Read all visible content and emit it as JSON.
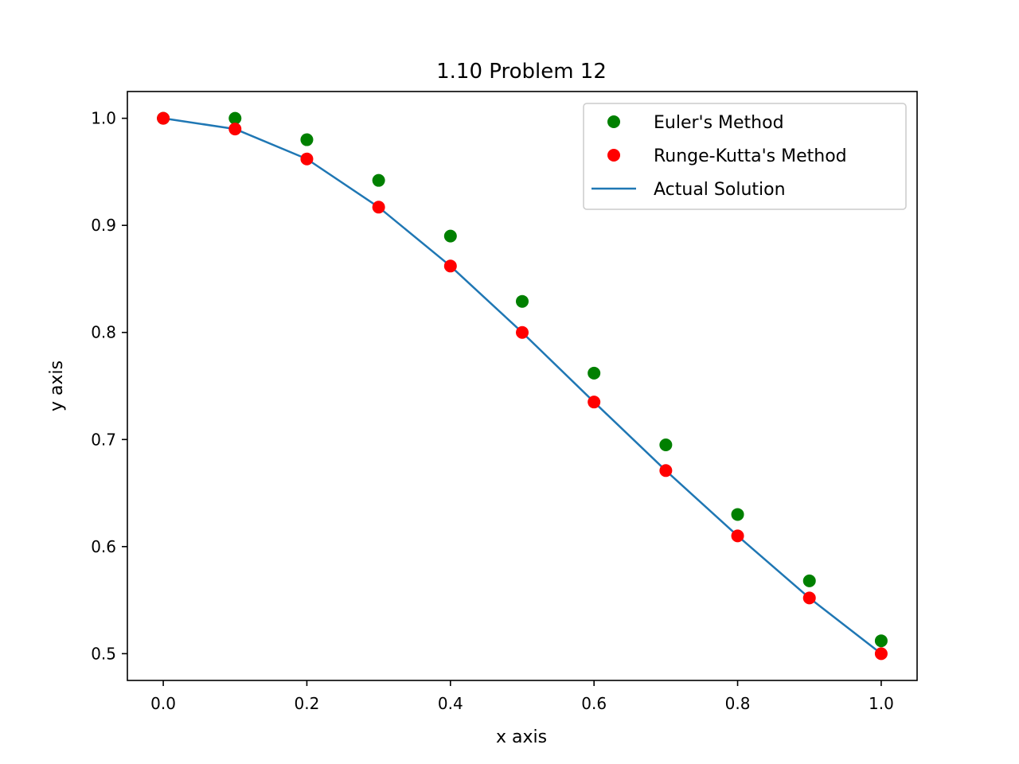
{
  "chart_data": {
    "type": "scatter",
    "title": "1.10 Problem 12",
    "xlabel": "x axis",
    "ylabel": "y axis",
    "xlim": [
      -0.05,
      1.05
    ],
    "ylim": [
      0.475,
      1.025
    ],
    "xticks": [
      0.0,
      0.2,
      0.4,
      0.6,
      0.8,
      1.0
    ],
    "xtick_labels": [
      "0.0",
      "0.2",
      "0.4",
      "0.6",
      "0.8",
      "1.0"
    ],
    "yticks": [
      0.5,
      0.6,
      0.7,
      0.8,
      0.9,
      1.0
    ],
    "ytick_labels": [
      "0.5",
      "0.6",
      "0.7",
      "0.8",
      "0.9",
      "1.0"
    ],
    "grid": false,
    "legend_position": "top-right",
    "series": [
      {
        "name": "Euler's Method",
        "kind": "scatter",
        "color": "#008000",
        "x": [
          0.0,
          0.1,
          0.2,
          0.3,
          0.4,
          0.5,
          0.6,
          0.7,
          0.8,
          0.9,
          1.0
        ],
        "y": [
          1.0,
          1.0,
          0.98,
          0.942,
          0.89,
          0.829,
          0.762,
          0.695,
          0.63,
          0.568,
          0.512
        ]
      },
      {
        "name": "Runge-Kutta's Method",
        "kind": "scatter",
        "color": "#ff0000",
        "x": [
          0.0,
          0.1,
          0.2,
          0.3,
          0.4,
          0.5,
          0.6,
          0.7,
          0.8,
          0.9,
          1.0
        ],
        "y": [
          1.0,
          0.99,
          0.962,
          0.917,
          0.862,
          0.8,
          0.735,
          0.671,
          0.61,
          0.552,
          0.5
        ]
      },
      {
        "name": "Actual Solution",
        "kind": "line",
        "color": "#1f77b4",
        "x": [
          0.0,
          0.1,
          0.2,
          0.3,
          0.4,
          0.5,
          0.6,
          0.7,
          0.8,
          0.9,
          1.0
        ],
        "y": [
          1.0,
          0.99,
          0.962,
          0.917,
          0.862,
          0.8,
          0.735,
          0.671,
          0.61,
          0.552,
          0.5
        ]
      }
    ]
  }
}
